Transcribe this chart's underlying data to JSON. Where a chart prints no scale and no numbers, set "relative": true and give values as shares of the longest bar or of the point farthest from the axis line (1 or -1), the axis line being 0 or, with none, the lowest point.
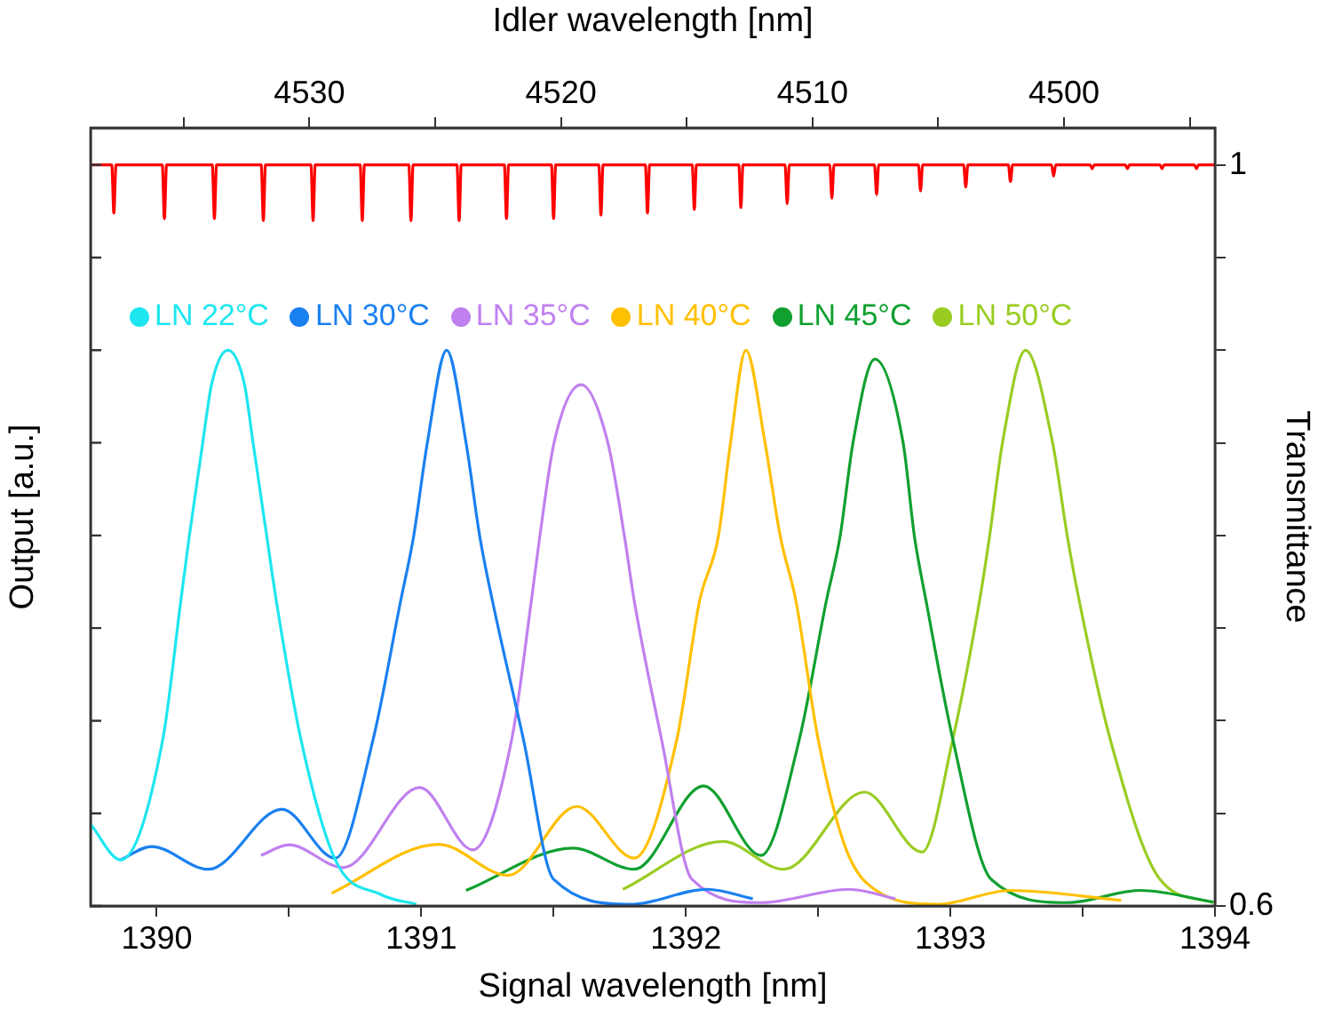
{
  "chart_data": [
    {
      "type": "line",
      "relative": true,
      "xlabel": "Signal wavelength [nm]",
      "ylabel": "Output [a.u.]",
      "xlim": [
        1389.75,
        1394
      ],
      "xticks": [
        1390,
        {
          "value": 1390.5,
          "label": null
        },
        1391,
        {
          "value": 1391.5,
          "label": null
        },
        1392,
        {
          "value": 1392.5,
          "label": null
        },
        1393,
        {
          "value": 1393.5,
          "label": null
        },
        1394
      ],
      "grid": false,
      "legend": "top",
      "marker": "none",
      "line_style": "solid",
      "series": [
        {
          "name": "LN 22°C",
          "color": "#1ee6f0",
          "x": [
            1389.75,
            1389.864,
            1390.023,
            1390.091,
            1390.123,
            1390.174,
            1390.208,
            1390.269,
            1390.331,
            1390.364,
            1390.416,
            1390.452,
            1390.545,
            1390.675,
            1390.85,
            1390.981
          ],
          "values": [
            0.147,
            0.083,
            0.3,
            0.549,
            0.665,
            0.834,
            0.94,
            1,
            0.94,
            0.834,
            0.665,
            0.549,
            0.3,
            0.083,
            0.02,
            0.003
          ]
        },
        {
          "name": "LN 30°C",
          "color": "#1a80f0",
          "x": [
            1389.864,
            1389.98,
            1390.195,
            1390.473,
            1390.675,
            1390.818,
            1390.922,
            1390.971,
            1391.023,
            1391.096,
            1391.169,
            1391.221,
            1391.269,
            1391.386,
            1391.5,
            1391.792,
            1392.081,
            1392.253
          ],
          "values": [
            0.083,
            0.107,
            0.066,
            0.174,
            0.086,
            0.3,
            0.549,
            0.665,
            0.834,
            1,
            0.834,
            0.665,
            0.549,
            0.3,
            0.048,
            0.003,
            0.03,
            0.013
          ]
        },
        {
          "name": "LN 35°C",
          "color": "#c080f0",
          "x": [
            1390.394,
            1390.5,
            1390.705,
            1390.994,
            1391.195,
            1391.342,
            1391.416,
            1391.448,
            1391.502,
            1391.604,
            1391.705,
            1391.768,
            1391.805,
            1391.908,
            1392.023,
            1392.284,
            1392.617,
            1392.792
          ],
          "values": [
            0.091,
            0.11,
            0.069,
            0.213,
            0.101,
            0.3,
            0.549,
            0.665,
            0.834,
            0.938,
            0.834,
            0.665,
            0.549,
            0.3,
            0.048,
            0.006,
            0.03,
            0.013
          ]
        },
        {
          "name": "LN 40°C",
          "color": "#ffc000",
          "x": [
            1390.661,
            1391.065,
            1391.328,
            1391.588,
            1391.805,
            1391.966,
            1392.052,
            1392.123,
            1392.169,
            1392.227,
            1392.299,
            1392.357,
            1392.416,
            1392.5,
            1392.604,
            1392.719,
            1392.951,
            1393.227,
            1393.646
          ],
          "values": [
            0.023,
            0.111,
            0.055,
            0.179,
            0.086,
            0.3,
            0.549,
            0.665,
            0.834,
            1,
            0.834,
            0.665,
            0.549,
            0.3,
            0.104,
            0.028,
            0.003,
            0.028,
            0.01
          ]
        },
        {
          "name": "LN 45°C",
          "color": "#10a030",
          "x": [
            1391.169,
            1391.574,
            1391.805,
            1392.067,
            1392.284,
            1392.429,
            1392.531,
            1392.583,
            1392.632,
            1392.714,
            1392.821,
            1392.864,
            1392.908,
            1393.009,
            1393.154,
            1393.442,
            1393.719,
            1393.994
          ],
          "values": [
            0.028,
            0.104,
            0.066,
            0.216,
            0.091,
            0.3,
            0.549,
            0.665,
            0.834,
            0.984,
            0.834,
            0.665,
            0.549,
            0.3,
            0.048,
            0.006,
            0.028,
            0.007
          ]
        },
        {
          "name": "LN 50°C",
          "color": "#99cc22",
          "x": [
            1391.762,
            1392.14,
            1392.37,
            1392.675,
            1392.893,
            1393.009,
            1393.11,
            1393.148,
            1393.197,
            1393.284,
            1393.386,
            1393.442,
            1393.487,
            1393.604,
            1393.792,
            1393.994
          ],
          "values": [
            0.03,
            0.116,
            0.066,
            0.205,
            0.097,
            0.3,
            0.549,
            0.665,
            0.834,
            1,
            0.834,
            0.665,
            0.549,
            0.3,
            0.048,
            0.006
          ]
        }
      ]
    },
    {
      "type": "line",
      "x2label": "Idler wavelength [nm]",
      "y2label": "Transmittance",
      "xlim": [
        1389.75,
        1394
      ],
      "x2lim": [
        4538.7,
        4494
      ],
      "x2ticks": [
        {
          "value": 4535,
          "label": null
        },
        4530,
        {
          "value": 4525,
          "label": null
        },
        4520,
        {
          "value": 4515,
          "label": null
        },
        4510,
        {
          "value": 4505,
          "label": null
        },
        4500,
        {
          "value": 4495,
          "label": null
        }
      ],
      "y2lim": [
        0.6,
        1.02
      ],
      "y2ticks": [
        0.6,
        {
          "value": 0.65,
          "label": null
        },
        {
          "value": 0.7,
          "label": null
        },
        {
          "value": 0.75,
          "label": null
        },
        {
          "value": 0.8,
          "label": null
        },
        {
          "value": 0.85,
          "label": null
        },
        {
          "value": 0.9,
          "label": null
        },
        {
          "value": 0.95,
          "label": null
        },
        1
      ],
      "grid": false,
      "marker": "none",
      "line_style": "solid",
      "series": [
        {
          "color": "#ff0000",
          "axis": "y2",
          "x": [
            1389.75,
            1389.83,
            1389.838,
            1389.846,
            1390.021,
            1390.029,
            1390.037,
            1390.21,
            1390.218,
            1390.226,
            1390.395,
            1390.403,
            1390.411,
            1390.583,
            1390.591,
            1390.599,
            1390.769,
            1390.777,
            1390.785,
            1390.953,
            1390.961,
            1390.969,
            1391.135,
            1391.143,
            1391.151,
            1391.314,
            1391.322,
            1391.33,
            1391.492,
            1391.5,
            1391.508,
            1391.671,
            1391.679,
            1391.687,
            1391.847,
            1391.855,
            1391.863,
            1392.024,
            1392.032,
            1392.04,
            1392.2,
            1392.208,
            1392.216,
            1392.375,
            1392.383,
            1392.391,
            1392.544,
            1392.552,
            1392.56,
            1392.713,
            1392.721,
            1392.729,
            1392.879,
            1392.887,
            1392.895,
            1393.05,
            1393.058,
            1393.066,
            1393.219,
            1393.227,
            1393.235,
            1393.382,
            1393.39,
            1393.398,
            1393.528,
            1393.536,
            1393.544,
            1393.661,
            1393.669,
            1393.677,
            1393.792,
            1393.8,
            1393.808,
            1393.922,
            1393.93,
            1393.938,
            1394
          ],
          "values": [
            1,
            1,
            0.974,
            1,
            1,
            0.971,
            1,
            1,
            0.971,
            1,
            1,
            0.97,
            1,
            1,
            0.97,
            1,
            1,
            0.97,
            1,
            1,
            0.97,
            1,
            1,
            0.97,
            1,
            1,
            0.971,
            1,
            1,
            0.971,
            1,
            1,
            0.973,
            1,
            1,
            0.974,
            1,
            1,
            0.976,
            1,
            1,
            0.977,
            1,
            1,
            0.979,
            1,
            1,
            0.982,
            1,
            1,
            0.984,
            1,
            1,
            0.986,
            1,
            1,
            0.988,
            1,
            1,
            0.991,
            1,
            1,
            0.994,
            1,
            1,
            0.998,
            1,
            1,
            0.998,
            1,
            1,
            0.998,
            1,
            1,
            0.998,
            1,
            1
          ]
        }
      ]
    }
  ]
}
